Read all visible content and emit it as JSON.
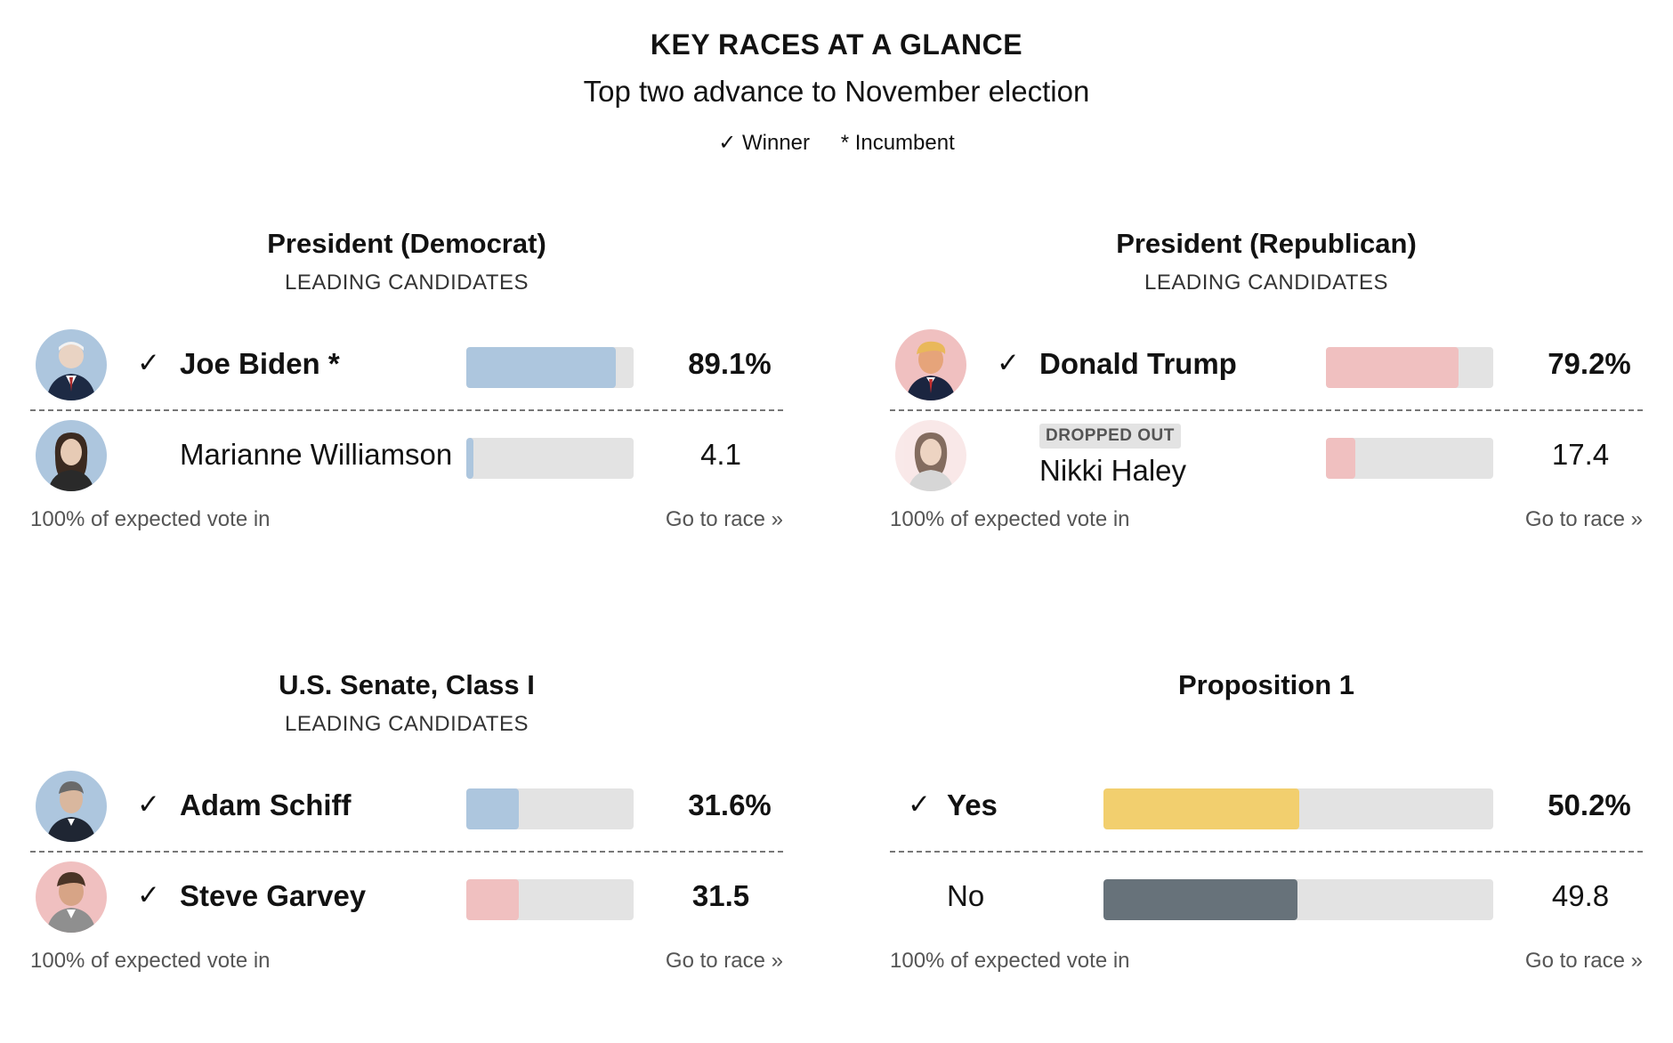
{
  "header": {
    "title": "KEY RACES AT A GLANCE",
    "subtitle": "Top two advance to November election",
    "legend_winner": "✓ Winner",
    "legend_incumbent": "* Incumbent"
  },
  "colors": {
    "democrat": "#adc6de",
    "republican": "#f0c0c0",
    "yes": "#f2cf6e",
    "no": "#67727a",
    "track": "#e3e3e3"
  },
  "chart_data": [
    {
      "type": "bar",
      "title": "President (Democrat)",
      "subtitle": "LEADING CANDIDATES",
      "categories": [
        "Joe Biden",
        "Marianne Williamson"
      ],
      "values": [
        89.1,
        4.1
      ],
      "labels": [
        "89.1%",
        "4.1"
      ],
      "winner": [
        true,
        false
      ],
      "incumbent": [
        true,
        false
      ],
      "status": [
        "",
        ""
      ],
      "bar_colors": [
        "#adc6de",
        "#adc6de"
      ],
      "ylim": [
        0,
        100
      ],
      "reporting": "100% of expected vote in",
      "link": "Go to race »"
    },
    {
      "type": "bar",
      "title": "President (Republican)",
      "subtitle": "LEADING CANDIDATES",
      "categories": [
        "Donald Trump",
        "Nikki Haley"
      ],
      "values": [
        79.2,
        17.4
      ],
      "labels": [
        "79.2%",
        "17.4"
      ],
      "winner": [
        true,
        false
      ],
      "incumbent": [
        false,
        false
      ],
      "status": [
        "",
        "DROPPED OUT"
      ],
      "bar_colors": [
        "#f0c0c0",
        "#f0c0c0"
      ],
      "ylim": [
        0,
        100
      ],
      "reporting": "100% of expected vote in",
      "link": "Go to race »"
    },
    {
      "type": "bar",
      "title": "U.S. Senate, Class I",
      "subtitle": "LEADING CANDIDATES",
      "categories": [
        "Adam Schiff",
        "Steve Garvey"
      ],
      "values": [
        31.6,
        31.5
      ],
      "labels": [
        "31.6%",
        "31.5"
      ],
      "winner": [
        true,
        true
      ],
      "incumbent": [
        false,
        false
      ],
      "status": [
        "",
        ""
      ],
      "bar_colors": [
        "#adc6de",
        "#f0c0c0"
      ],
      "ylim": [
        0,
        100
      ],
      "reporting": "100% of expected vote in",
      "link": "Go to race »"
    },
    {
      "type": "bar",
      "title": "Proposition 1",
      "subtitle": "",
      "categories": [
        "Yes",
        "No"
      ],
      "values": [
        50.2,
        49.8
      ],
      "labels": [
        "50.2%",
        "49.8"
      ],
      "winner": [
        true,
        false
      ],
      "incumbent": [
        false,
        false
      ],
      "status": [
        "",
        ""
      ],
      "bar_colors": [
        "#f2cf6e",
        "#67727a"
      ],
      "ylim": [
        0,
        100
      ],
      "reporting": "100% of expected vote in",
      "link": "Go to race »"
    }
  ]
}
